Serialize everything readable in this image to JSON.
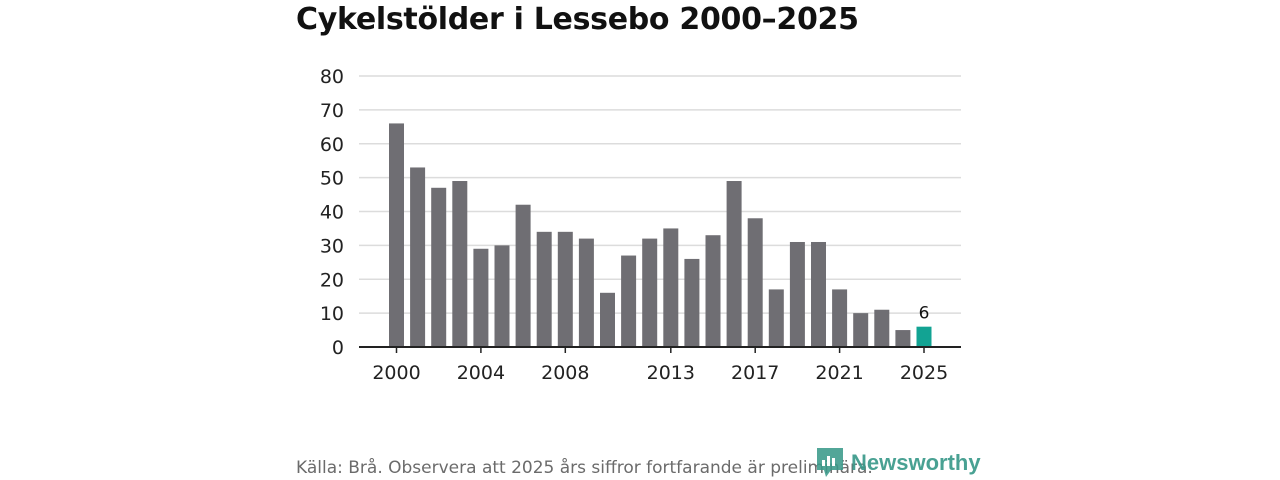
{
  "title": "Cykelstölder i Lessebo 2000–2025",
  "source": "Källa: Brå. Observera att 2025 års siffror fortfarande är preliminära.",
  "logo": {
    "text": "Newsworthy",
    "icon": "newsworthy-logo-icon"
  },
  "colors": {
    "bar": "#6f6e73",
    "highlight": "#12a393",
    "grid": "#dcdcdc",
    "axis": "#222222",
    "text": "#222222",
    "logo": "#3a9a8a"
  },
  "chart_data": {
    "type": "bar",
    "title": "Cykelstölder i Lessebo 2000–2025",
    "xlabel": "",
    "ylabel": "",
    "ylim": [
      0,
      80
    ],
    "yticks": [
      "0",
      "10",
      "20",
      "30",
      "40",
      "50",
      "60",
      "70",
      "80"
    ],
    "categories": [
      2000,
      2001,
      2002,
      2003,
      2004,
      2005,
      2006,
      2007,
      2008,
      2009,
      2010,
      2011,
      2012,
      2013,
      2014,
      2015,
      2016,
      2017,
      2018,
      2019,
      2020,
      2021,
      2022,
      2023,
      2024,
      2025
    ],
    "values": [
      66,
      53,
      47,
      49,
      29,
      30,
      42,
      34,
      34,
      32,
      16,
      27,
      32,
      35,
      26,
      33,
      49,
      38,
      17,
      31,
      31,
      17,
      10,
      11,
      5,
      6
    ],
    "xtick_labels": [
      "2000",
      "2004",
      "2008",
      "2013",
      "2017",
      "2021",
      "2025"
    ],
    "highlight": {
      "category": 2025,
      "label": "6"
    },
    "grid": true
  }
}
